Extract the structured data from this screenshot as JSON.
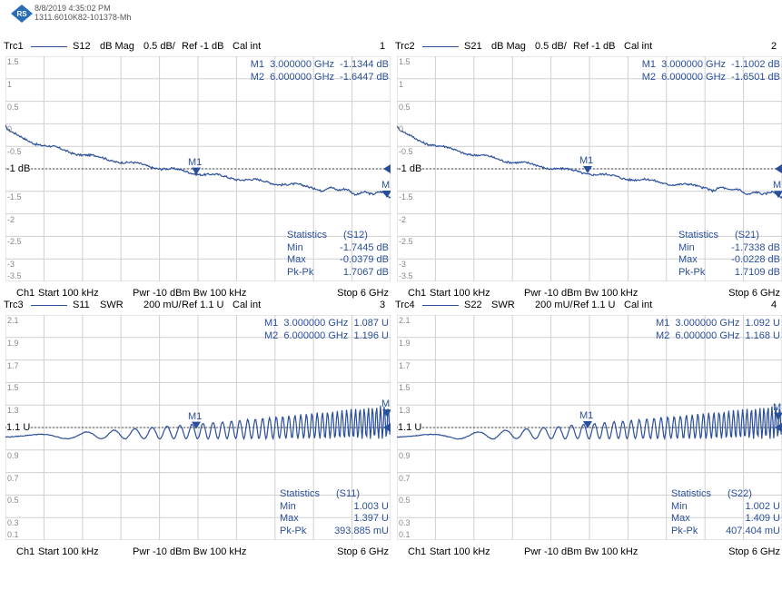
{
  "header": {
    "timestamp": "8/8/2019 4:35:02 PM",
    "device_id": "1311.6010K82-101378-Mh",
    "logo": "rohde-schwarz-logo"
  },
  "colors": {
    "trace": "#2a4f9a",
    "grid": "#cfcfcf",
    "ref": "#555555"
  },
  "panels": [
    {
      "trace": "Trc1",
      "param": "S12",
      "format": "dB Mag",
      "scale": "0.5 dB/",
      "ref": "Ref -1 dB",
      "cal": "Cal int",
      "num": "1",
      "ref_label": "-1 dB",
      "ref_value": -1,
      "y_ticks": [
        "1.5",
        "1",
        "0.5",
        "0",
        "-0.5",
        "-1",
        "-1.5",
        "-2",
        "-2.5",
        "-3",
        "-3.5"
      ],
      "ylim": [
        -3.5,
        1.5
      ],
      "m1": {
        "name": "M1",
        "freq": "3.000000 GHz",
        "value": "-1.1344 dB"
      },
      "m2": {
        "name": "M2",
        "freq": "6.000000 GHz",
        "value": "-1.6447 dB"
      },
      "stats": {
        "title": "Statistics",
        "param": "(S12)",
        "min_label": "Min",
        "min": "-1.7445 dB",
        "max_label": "Max",
        "max": "-0.0379 dB",
        "pkpk_label": "Pk-Pk",
        "pkpk": "1.7067 dB"
      },
      "footer": {
        "ch": "Ch1",
        "start": "Start  100 kHz",
        "pwr": "Pwr  -10 dBm  Bw  100 kHz",
        "stop": "Stop  6 GHz"
      }
    },
    {
      "trace": "Trc2",
      "param": "S21",
      "format": "dB Mag",
      "scale": "0.5 dB/",
      "ref": "Ref -1 dB",
      "cal": "Cal int",
      "num": "2",
      "ref_label": "-1 dB",
      "ref_value": -1,
      "y_ticks": [
        "1.5",
        "1",
        "0.5",
        "0",
        "-0.5",
        "-1",
        "-1.5",
        "-2",
        "-2.5",
        "-3",
        "-3.5"
      ],
      "ylim": [
        -3.5,
        1.5
      ],
      "m1": {
        "name": "M1",
        "freq": "3.000000 GHz",
        "value": "-1.1002 dB"
      },
      "m2": {
        "name": "M2",
        "freq": "6.000000 GHz",
        "value": "-1.6501 dB"
      },
      "stats": {
        "title": "Statistics",
        "param": "(S21)",
        "min_label": "Min",
        "min": "-1.7338 dB",
        "max_label": "Max",
        "max": "-0.0228 dB",
        "pkpk_label": "Pk-Pk",
        "pkpk": "1.7109 dB"
      },
      "footer": {
        "ch": "Ch1",
        "start": "Start  100 kHz",
        "pwr": "Pwr  -10 dBm  Bw  100 kHz",
        "stop": "Stop  6 GHz"
      }
    },
    {
      "trace": "Trc3",
      "param": "S11",
      "format": "SWR",
      "scale": "200 mU/",
      "ref": "Ref 1.1 U",
      "cal": "Cal int",
      "num": "3",
      "ref_label": "1.1 U",
      "ref_value": 1.1,
      "y_ticks": [
        "2.1",
        "1.9",
        "1.7",
        "1.5",
        "1.3",
        "1.1",
        "0.9",
        "0.7",
        "0.5",
        "0.3",
        "0.1"
      ],
      "ylim": [
        0.1,
        2.1
      ],
      "m1": {
        "name": "M1",
        "freq": "3.000000 GHz",
        "value": "1.087 U"
      },
      "m2": {
        "name": "M2",
        "freq": "6.000000 GHz",
        "value": "1.196 U"
      },
      "stats": {
        "title": "Statistics",
        "param": "(S11)",
        "min_label": "Min",
        "min": "1.003 U",
        "max_label": "Max",
        "max": "1.397 U",
        "pkpk_label": "Pk-Pk",
        "pkpk": "393.885 mU"
      },
      "footer": {
        "ch": "Ch1",
        "start": "Start  100 kHz",
        "pwr": "Pwr  -10 dBm  Bw  100 kHz",
        "stop": "Stop  6 GHz"
      }
    },
    {
      "trace": "Trc4",
      "param": "S22",
      "format": "SWR",
      "scale": "200 mU/",
      "ref": "Ref 1.1 U",
      "cal": "Cal int",
      "num": "4",
      "ref_label": "1.1 U",
      "ref_value": 1.1,
      "y_ticks": [
        "2.1",
        "1.9",
        "1.7",
        "1.5",
        "1.3",
        "1.1",
        "0.9",
        "0.7",
        "0.5",
        "0.3",
        "0.1"
      ],
      "ylim": [
        0.1,
        2.1
      ],
      "m1": {
        "name": "M1",
        "freq": "3.000000 GHz",
        "value": "1.092 U"
      },
      "m2": {
        "name": "M2",
        "freq": "6.000000 GHz",
        "value": "1.168 U"
      },
      "stats": {
        "title": "Statistics",
        "param": "(S22)",
        "min_label": "Min",
        "min": "1.002 U",
        "max_label": "Max",
        "max": "1.409 U",
        "pkpk_label": "Pk-Pk",
        "pkpk": "407.404 mU"
      },
      "footer": {
        "ch": "Ch1",
        "start": "Start  100 kHz",
        "pwr": "Pwr  -10 dBm  Bw  100 kHz",
        "stop": "Stop  6 GHz"
      }
    }
  ]
}
